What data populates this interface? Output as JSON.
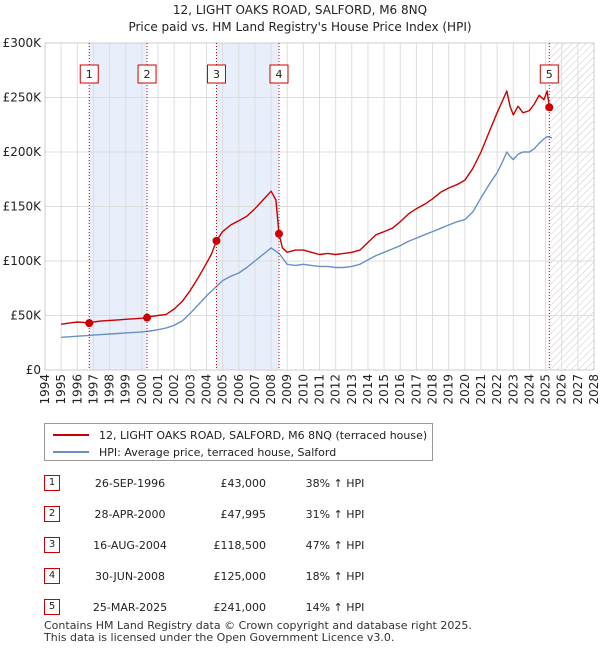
{
  "chart_data": {
    "type": "line",
    "title": "12, LIGHT OAKS ROAD, SALFORD, M6 8NQ",
    "subtitle": "Price paid vs. HM Land Registry's House Price Index (HPI)",
    "xlabel": "",
    "ylabel": "",
    "xlim": [
      1994,
      2028
    ],
    "ylim": [
      0,
      300000
    ],
    "y_ticks": [
      0,
      50000,
      100000,
      150000,
      200000,
      250000,
      300000
    ],
    "y_tick_labels": [
      "£0",
      "£50K",
      "£100K",
      "£150K",
      "£200K",
      "£250K",
      "£300K"
    ],
    "x_ticks": [
      1994,
      1995,
      1996,
      1997,
      1998,
      1999,
      2000,
      2001,
      2002,
      2003,
      2004,
      2005,
      2006,
      2007,
      2008,
      2009,
      2010,
      2011,
      2012,
      2013,
      2014,
      2015,
      2016,
      2017,
      2018,
      2019,
      2020,
      2021,
      2022,
      2023,
      2024,
      2025,
      2026,
      2027,
      2028
    ],
    "x_tick_labels": [
      "1994",
      "1995",
      "1996",
      "1997",
      "1998",
      "1999",
      "2000",
      "2001",
      "2002",
      "2003",
      "2004",
      "2005",
      "2006",
      "2007",
      "2008",
      "2009",
      "2010",
      "2011",
      "2012",
      "2013",
      "2014",
      "2015",
      "2016",
      "2017",
      "2018",
      "2019",
      "2020",
      "2021",
      "2022",
      "2023",
      "2024",
      "2025",
      "2026",
      "2027",
      "2028"
    ],
    "grid": true,
    "series": [
      {
        "name": "12, LIGHT OAKS ROAD, SALFORD, M6 8NQ (terraced house)",
        "color": "#cc0000",
        "x": [
          1995.0,
          1995.5,
          1996.0,
          1996.5,
          1996.74,
          1997.0,
          1997.5,
          1998.0,
          1998.5,
          1999.0,
          1999.5,
          2000.0,
          2000.32,
          2000.5,
          2001.0,
          2001.5,
          2002.0,
          2002.5,
          2003.0,
          2003.5,
          2004.0,
          2004.3,
          2004.62,
          2005.0,
          2005.5,
          2006.0,
          2006.5,
          2007.0,
          2007.5,
          2008.0,
          2008.3,
          2008.49,
          2008.7,
          2009.0,
          2009.5,
          2010.0,
          2010.5,
          2011.0,
          2011.5,
          2012.0,
          2012.5,
          2013.0,
          2013.5,
          2014.0,
          2014.5,
          2015.0,
          2015.5,
          2016.0,
          2016.5,
          2017.0,
          2017.5,
          2018.0,
          2018.5,
          2019.0,
          2019.5,
          2020.0,
          2020.5,
          2021.0,
          2021.5,
          2022.0,
          2022.3,
          2022.6,
          2022.8,
          2023.0,
          2023.3,
          2023.6,
          2024.0,
          2024.3,
          2024.6,
          2024.9,
          2025.1,
          2025.23,
          2025.4
        ],
        "values": [
          42000,
          43000,
          44000,
          43500,
          43000,
          44000,
          45000,
          45500,
          46000,
          46500,
          47000,
          47500,
          47995,
          49000,
          50000,
          51000,
          56000,
          63000,
          73000,
          85000,
          98000,
          106000,
          118500,
          127000,
          133000,
          137000,
          141000,
          148000,
          156000,
          164000,
          156000,
          125000,
          112000,
          108000,
          110000,
          110000,
          108000,
          106000,
          107000,
          106000,
          107000,
          108000,
          110000,
          117000,
          124000,
          127000,
          130000,
          136000,
          143000,
          148000,
          152000,
          157000,
          163000,
          167000,
          170000,
          174000,
          185000,
          200000,
          218000,
          236000,
          246000,
          256000,
          242000,
          234000,
          242000,
          236000,
          238000,
          244000,
          252000,
          248000,
          256000,
          241000,
          238000
        ]
      },
      {
        "name": "HPI: Average price, terraced house, Salford",
        "color": "#6a8fc8",
        "x": [
          1995.0,
          1995.5,
          1996.0,
          1996.5,
          1997.0,
          1997.5,
          1998.0,
          1998.5,
          1999.0,
          1999.5,
          2000.0,
          2000.5,
          2001.0,
          2001.5,
          2002.0,
          2002.5,
          2003.0,
          2003.5,
          2004.0,
          2004.5,
          2005.0,
          2005.5,
          2006.0,
          2006.5,
          2007.0,
          2007.5,
          2008.0,
          2008.5,
          2009.0,
          2009.5,
          2010.0,
          2010.5,
          2011.0,
          2011.5,
          2012.0,
          2012.5,
          2013.0,
          2013.5,
          2014.0,
          2014.5,
          2015.0,
          2015.5,
          2016.0,
          2016.5,
          2017.0,
          2017.5,
          2018.0,
          2018.5,
          2019.0,
          2019.5,
          2020.0,
          2020.5,
          2021.0,
          2021.5,
          2022.0,
          2022.3,
          2022.6,
          2022.8,
          2023.0,
          2023.3,
          2023.6,
          2024.0,
          2024.3,
          2024.6,
          2024.9,
          2025.1,
          2025.4
        ],
        "values": [
          30000,
          30500,
          31000,
          31500,
          32000,
          32500,
          33000,
          33500,
          34000,
          34500,
          35000,
          35800,
          37000,
          38500,
          41000,
          45000,
          52000,
          60000,
          68000,
          75000,
          82000,
          86000,
          89000,
          94000,
          100000,
          106000,
          112000,
          107000,
          97000,
          96000,
          97000,
          96000,
          95000,
          95000,
          94000,
          94000,
          95000,
          97000,
          101000,
          105000,
          108000,
          111000,
          114000,
          118000,
          121000,
          124000,
          127000,
          130000,
          133000,
          136000,
          138000,
          145000,
          158000,
          170000,
          181000,
          190000,
          200000,
          196000,
          193000,
          198000,
          200000,
          200000,
          203000,
          208000,
          212000,
          214000,
          213000
        ]
      }
    ],
    "markers": [
      {
        "label": "1",
        "x": 1996.74,
        "value": 43000
      },
      {
        "label": "2",
        "x": 2000.32,
        "value": 47995
      },
      {
        "label": "3",
        "x": 2004.62,
        "value": 118500
      },
      {
        "label": "4",
        "x": 2008.49,
        "value": 125000
      },
      {
        "label": "5",
        "x": 2025.23,
        "value": 241000
      }
    ],
    "shaded_ranges": [
      [
        1996.74,
        2000.32
      ],
      [
        2004.62,
        2008.49
      ]
    ],
    "hatched_range": [
      2025.23,
      2028
    ]
  },
  "legend": {
    "property_label": "12, LIGHT OAKS ROAD, SALFORD, M6 8NQ (terraced house)",
    "hpi_label": "HPI: Average price, terraced house, Salford"
  },
  "sales": [
    {
      "num": "1",
      "date": "26-SEP-1996",
      "price": "£43,000",
      "hpi": "38% ↑ HPI"
    },
    {
      "num": "2",
      "date": "28-APR-2000",
      "price": "£47,995",
      "hpi": "31% ↑ HPI"
    },
    {
      "num": "3",
      "date": "16-AUG-2004",
      "price": "£118,500",
      "hpi": "47% ↑ HPI"
    },
    {
      "num": "4",
      "date": "30-JUN-2008",
      "price": "£125,000",
      "hpi": "18% ↑ HPI"
    },
    {
      "num": "5",
      "date": "25-MAR-2025",
      "price": "£241,000",
      "hpi": "14% ↑ HPI"
    }
  ],
  "footer": {
    "line1": "Contains HM Land Registry data © Crown copyright and database right 2025.",
    "line2": "This data is licensed under the Open Government Licence v3.0."
  },
  "colors": {
    "property": "#cc0000",
    "hpi": "#6a8fc8",
    "shade": "#e8eefa",
    "grid": "#dddddd"
  }
}
